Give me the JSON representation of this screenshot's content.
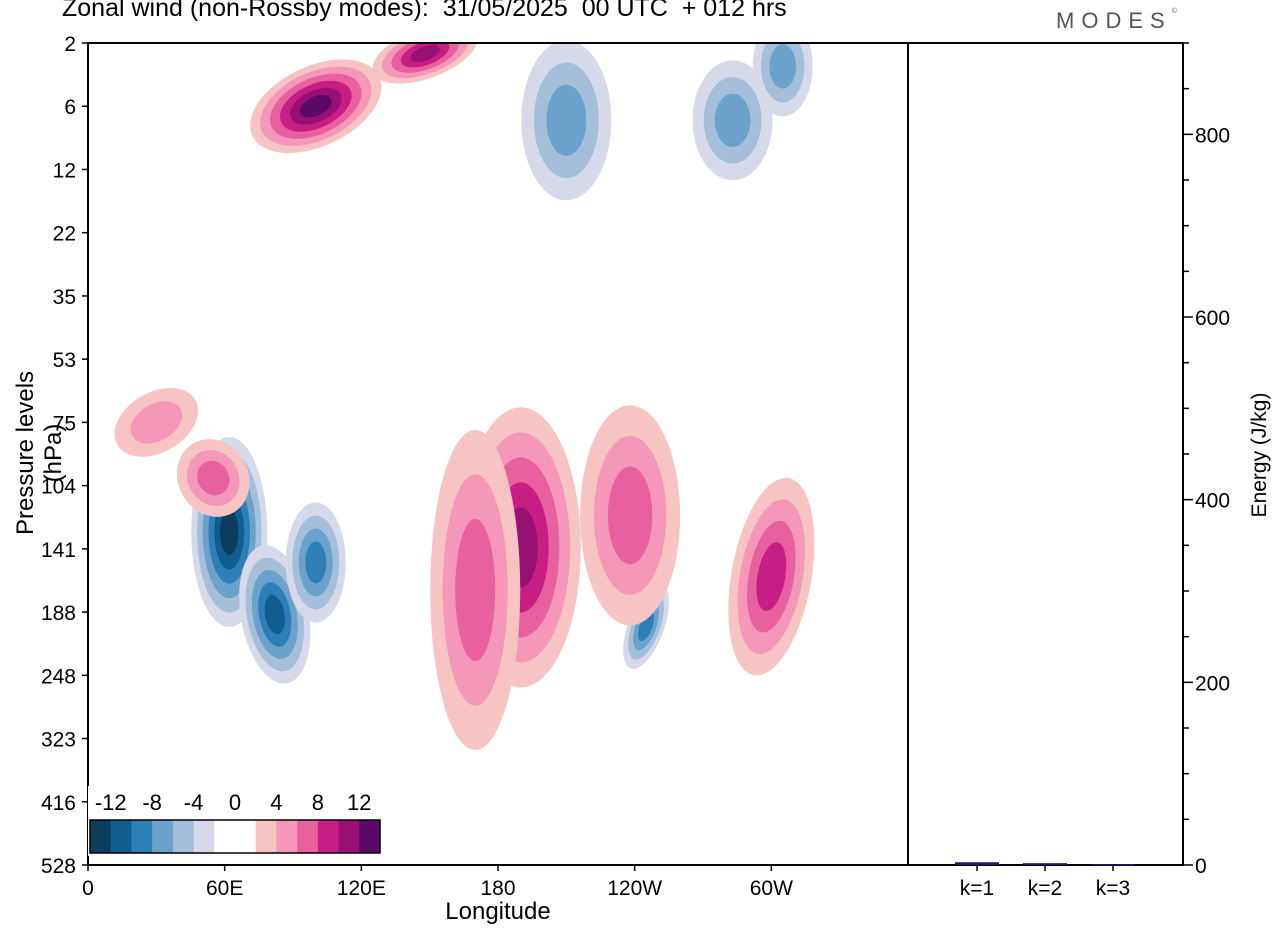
{
  "title": "Zonal wind (non-Rossby modes):  31/05/2025  00 UTC  + 012 hrs",
  "logo": "MODES",
  "chart_data": [
    {
      "type": "heatmap",
      "title": "Zonal wind (non-Rossby modes):  31/05/2025  00 UTC  + 012 hrs",
      "xlabel": "Longitude",
      "ylabel": "Pressure levels (hPa)",
      "x_ticks": [
        "0",
        "60E",
        "120E",
        "180",
        "120W",
        "60W"
      ],
      "y_ticks": [
        "2",
        "6",
        "12",
        "22",
        "35",
        "53",
        "75",
        "104",
        "141",
        "188",
        "248",
        "323",
        "416",
        "528"
      ],
      "colorbar": {
        "tick_labels": [
          "-12",
          "-8",
          "-4",
          "0",
          "4",
          "8",
          "12"
        ],
        "colors": [
          "#0b3d5c",
          "#0f5e8e",
          "#2e7eb8",
          "#6aa2cc",
          "#a5bfdb",
          "#d6d9ea",
          "#ffffff",
          "#ffffff",
          "#f7c3c3",
          "#f497b8",
          "#e8619e",
          "#c71e86",
          "#991074",
          "#5a0a66"
        ]
      },
      "features": [
        {
          "sign": "negative",
          "lon": 62,
          "level": 130,
          "peak": -13
        },
        {
          "sign": "negative",
          "lon": 82,
          "level": 190,
          "peak": -10
        },
        {
          "sign": "negative",
          "lon": 100,
          "level": 150,
          "peak": -8
        },
        {
          "sign": "negative",
          "lon": 245,
          "level": 200,
          "peak": -7
        },
        {
          "sign": "negative",
          "lon": 210,
          "level": 7,
          "peak": -6
        },
        {
          "sign": "negative",
          "lon": 283,
          "level": 7,
          "peak": -6
        },
        {
          "sign": "negative",
          "lon": 305,
          "level": 3,
          "peak": -6
        },
        {
          "sign": "positive",
          "lon": 100,
          "level": 6,
          "peak": 12
        },
        {
          "sign": "positive",
          "lon": 148,
          "level": 2.4,
          "peak": 9
        },
        {
          "sign": "positive",
          "lon": 190,
          "level": 140,
          "peak": 10
        },
        {
          "sign": "positive",
          "lon": 170,
          "level": 170,
          "peak": 6
        },
        {
          "sign": "positive",
          "lon": 238,
          "level": 120,
          "peak": 6
        },
        {
          "sign": "positive",
          "lon": 300,
          "level": 160,
          "peak": 7
        },
        {
          "sign": "positive",
          "lon": 55,
          "level": 100,
          "peak": 6
        },
        {
          "sign": "positive",
          "lon": 30,
          "level": 75,
          "peak": 4
        }
      ]
    },
    {
      "type": "bar",
      "ylabel": "Energy (J/kg)",
      "categories": [
        "k=1",
        "k=2",
        "k=3"
      ],
      "values": [
        3,
        2,
        1
      ],
      "ylim": [
        0,
        900
      ],
      "yticks": [
        0,
        200,
        400,
        600,
        800
      ],
      "bar_color": "#1a1a66"
    }
  ]
}
